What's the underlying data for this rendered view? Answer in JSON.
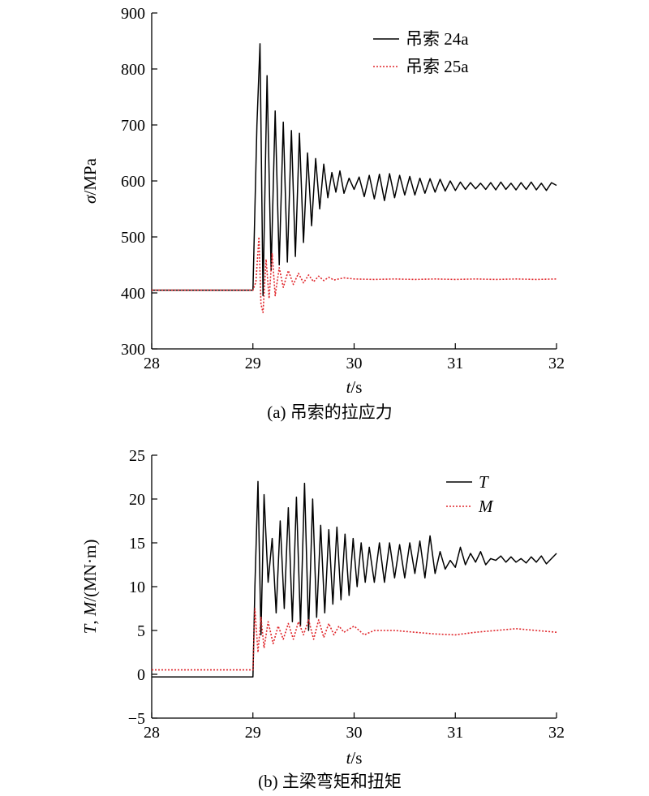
{
  "chart_data": [
    {
      "type": "line",
      "caption": "(a) 吊索的拉应力",
      "xlabel": {
        "var": "t",
        "unit": "/s"
      },
      "ylabel": {
        "var": "σ",
        "unit": "/MPa"
      },
      "xlim": [
        28,
        32
      ],
      "ylim": [
        300,
        900
      ],
      "xticks": [
        "28",
        "29",
        "30",
        "31",
        "32"
      ],
      "yticks": [
        "300",
        "400",
        "500",
        "600",
        "700",
        "800",
        "900"
      ],
      "legend_position": "top-right",
      "series": [
        {
          "name": "吊索 24a",
          "color": "#000000",
          "style": "solid",
          "x": [
            28.0,
            29.0,
            29.04,
            29.07,
            29.1,
            29.14,
            29.18,
            29.22,
            29.26,
            29.3,
            29.34,
            29.38,
            29.42,
            29.46,
            29.5,
            29.54,
            29.58,
            29.62,
            29.66,
            29.7,
            29.74,
            29.78,
            29.82,
            29.86,
            29.9,
            29.95,
            30.0,
            30.05,
            30.1,
            30.15,
            30.2,
            30.25,
            30.3,
            30.35,
            30.4,
            30.45,
            30.5,
            30.55,
            30.6,
            30.65,
            30.7,
            30.75,
            30.8,
            30.85,
            30.9,
            30.95,
            31.0,
            31.05,
            31.1,
            31.15,
            31.2,
            31.25,
            31.3,
            31.35,
            31.4,
            31.45,
            31.5,
            31.55,
            31.6,
            31.65,
            31.7,
            31.75,
            31.8,
            31.85,
            31.9,
            31.95,
            32.0
          ],
          "values": [
            405,
            405,
            700,
            845,
            395,
            788,
            440,
            725,
            450,
            705,
            455,
            690,
            465,
            685,
            490,
            650,
            520,
            640,
            550,
            630,
            570,
            615,
            580,
            618,
            578,
            605,
            585,
            607,
            572,
            610,
            568,
            612,
            565,
            613,
            570,
            610,
            575,
            608,
            575,
            605,
            578,
            604,
            580,
            603,
            582,
            600,
            583,
            598,
            585,
            597,
            586,
            596,
            585,
            597,
            584,
            598,
            585,
            596,
            584,
            597,
            585,
            598,
            584,
            596,
            583,
            597,
            592
          ]
        },
        {
          "name": "吊索 25a",
          "color": "#e0262b",
          "style": "dotted",
          "x": [
            28.0,
            29.0,
            29.03,
            29.06,
            29.08,
            29.1,
            29.13,
            29.16,
            29.19,
            29.22,
            29.26,
            29.3,
            29.35,
            29.4,
            29.45,
            29.5,
            29.55,
            29.6,
            29.65,
            29.7,
            29.75,
            29.8,
            29.9,
            30.0,
            30.2,
            30.4,
            30.6,
            30.8,
            31.0,
            31.2,
            31.4,
            31.6,
            31.8,
            32.0
          ],
          "values": [
            405,
            405,
            420,
            500,
            380,
            365,
            460,
            390,
            470,
            395,
            445,
            410,
            440,
            415,
            435,
            418,
            432,
            420,
            430,
            422,
            428,
            423,
            427,
            425,
            424,
            425,
            424,
            425,
            424,
            425,
            424,
            425,
            424,
            425
          ]
        }
      ]
    },
    {
      "type": "line",
      "caption": "(b) 主梁弯矩和扭矩",
      "xlabel": {
        "var": "t",
        "unit": "/s"
      },
      "ylabel": {
        "var1": "T",
        "sep": ", ",
        "var2": "M",
        "unit": "/(MN·m)"
      },
      "xlim": [
        28,
        32
      ],
      "ylim": [
        -5,
        25
      ],
      "xticks": [
        "28",
        "29",
        "30",
        "31",
        "32"
      ],
      "yticks": [
        "−5",
        "0",
        "5",
        "10",
        "15",
        "20",
        "25"
      ],
      "legend_position": "top-right",
      "series": [
        {
          "name": "T",
          "color": "#000000",
          "style": "solid",
          "x": [
            28.0,
            29.0,
            29.02,
            29.05,
            29.08,
            29.11,
            29.15,
            29.19,
            29.23,
            29.27,
            29.31,
            29.35,
            29.39,
            29.43,
            29.47,
            29.51,
            29.55,
            29.59,
            29.63,
            29.67,
            29.71,
            29.75,
            29.79,
            29.83,
            29.87,
            29.91,
            29.95,
            29.99,
            30.03,
            30.07,
            30.11,
            30.15,
            30.2,
            30.25,
            30.3,
            30.35,
            30.4,
            30.45,
            30.5,
            30.55,
            30.6,
            30.65,
            30.7,
            30.75,
            30.8,
            30.85,
            30.9,
            30.95,
            31.0,
            31.05,
            31.1,
            31.15,
            31.2,
            31.25,
            31.3,
            31.35,
            31.4,
            31.45,
            31.5,
            31.55,
            31.6,
            31.65,
            31.7,
            31.75,
            31.8,
            31.85,
            31.9,
            31.95,
            32.0
          ],
          "values": [
            -0.3,
            -0.3,
            10,
            22,
            4.5,
            20.5,
            10.5,
            15.5,
            7,
            17.5,
            7.5,
            19,
            6,
            20.2,
            5.5,
            21.8,
            5,
            20,
            6.5,
            17,
            7,
            16.5,
            8,
            16.8,
            8.5,
            16,
            9,
            15.5,
            10,
            15,
            10.5,
            14.5,
            10.5,
            15,
            10.5,
            15,
            11,
            14.8,
            11,
            15,
            11.5,
            15.2,
            11,
            15.8,
            11.5,
            14,
            12,
            13,
            12.2,
            14.5,
            12.5,
            13.8,
            12.8,
            14,
            12.5,
            13.2,
            13,
            13.5,
            12.8,
            13.4,
            12.8,
            13.2,
            12.7,
            13.4,
            12.8,
            13.5,
            12.6,
            13.2,
            13.8
          ]
        },
        {
          "name": "M",
          "color": "#e0262b",
          "style": "dotted",
          "x": [
            28.0,
            29.0,
            29.02,
            29.05,
            29.08,
            29.11,
            29.15,
            29.2,
            29.25,
            29.3,
            29.35,
            29.4,
            29.45,
            29.5,
            29.55,
            29.6,
            29.65,
            29.7,
            29.75,
            29.8,
            29.85,
            29.9,
            30.0,
            30.1,
            30.2,
            30.4,
            30.6,
            30.8,
            31.0,
            31.2,
            31.4,
            31.6,
            31.8,
            32.0
          ],
          "values": [
            0.5,
            0.5,
            7.5,
            2.5,
            6.5,
            3,
            6,
            3.5,
            5.5,
            4,
            5.8,
            4,
            6,
            4.5,
            6.2,
            4,
            6.2,
            4.2,
            5.8,
            4.5,
            5.5,
            4.8,
            5.5,
            4.5,
            5,
            5,
            4.8,
            4.6,
            4.5,
            4.8,
            5,
            5.2,
            5,
            4.8
          ]
        }
      ]
    }
  ]
}
